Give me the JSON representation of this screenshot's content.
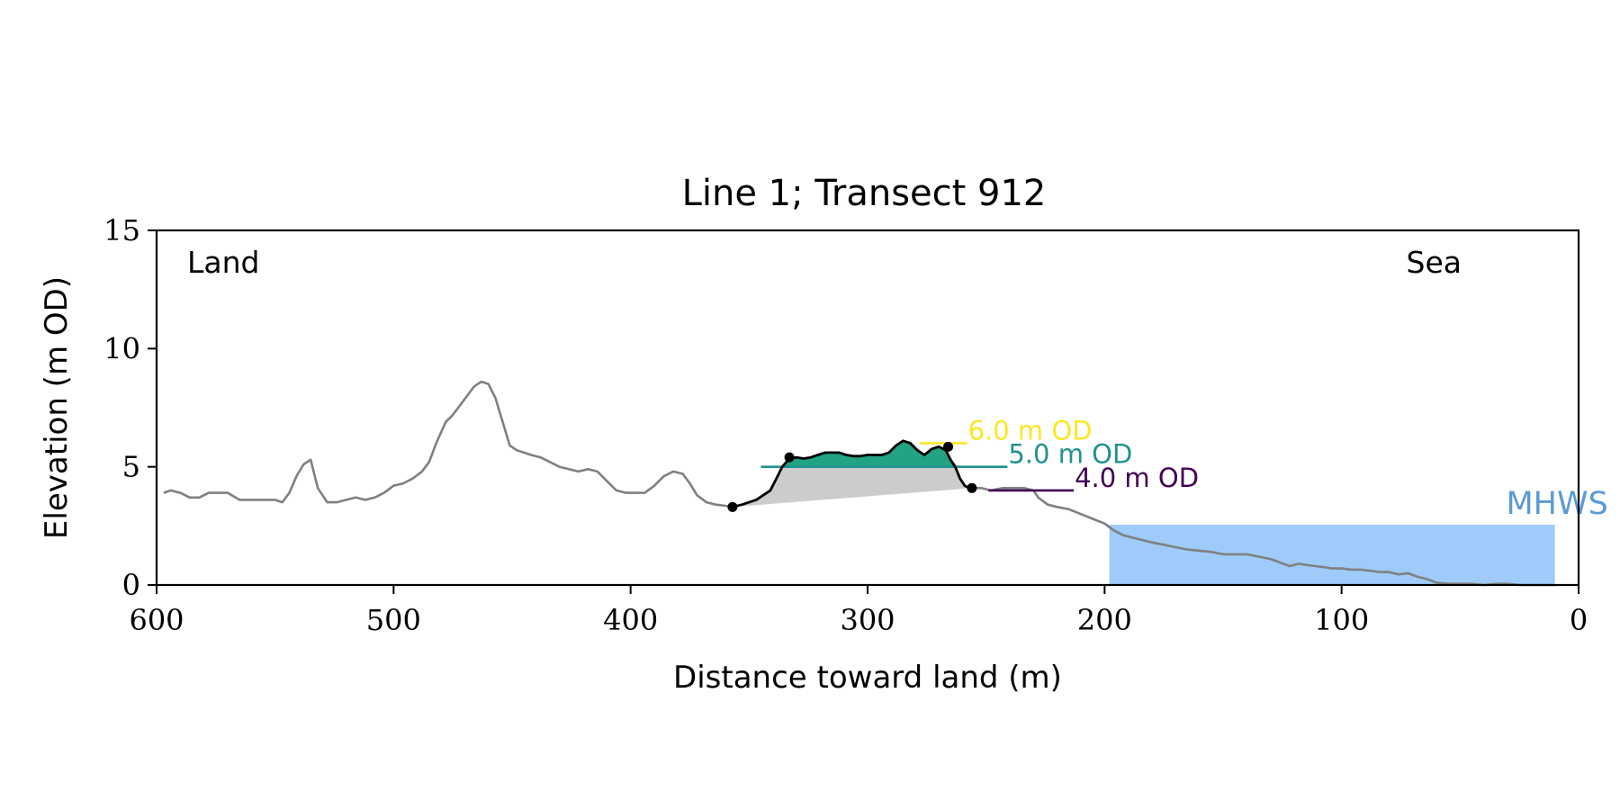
{
  "chart_data": {
    "type": "line",
    "title": "Line 1; Transect 912",
    "xlabel": "Distance toward land (m)",
    "ylabel": "Elevation (m OD)",
    "xlim": [
      600,
      0
    ],
    "ylim": [
      0,
      15
    ],
    "x_ticks": [
      600,
      500,
      400,
      300,
      200,
      100,
      0
    ],
    "y_ticks": [
      0,
      5,
      10,
      15
    ],
    "grid": false,
    "annotations": {
      "land": "Land",
      "sea": "Sea",
      "mhws": "MHWS"
    },
    "mhws": {
      "level": 2.55,
      "x_start": 198,
      "x_end": 10,
      "color": "#9ecbfa"
    },
    "colors": {
      "profile": "#808080",
      "dune": "#000000",
      "dune_fill": "#22a384",
      "base_fill": "#cccccc"
    },
    "profile": {
      "x": [
        597,
        594,
        590,
        586,
        582,
        578,
        575,
        570,
        565,
        560,
        555,
        550,
        547,
        544,
        541,
        538,
        535,
        532,
        528,
        524,
        520,
        516,
        512,
        508,
        504,
        500,
        496,
        492,
        488,
        485,
        482,
        478,
        475,
        472,
        469,
        466,
        463,
        460,
        457,
        454,
        451,
        448,
        445,
        442,
        438,
        434,
        430,
        426,
        422,
        418,
        414,
        410,
        406,
        402,
        398,
        394,
        390,
        386,
        382,
        378,
        375,
        372,
        368,
        364,
        360,
        357,
        355
      ],
      "y": [
        3.9,
        4.0,
        3.9,
        3.7,
        3.7,
        3.9,
        3.9,
        3.9,
        3.6,
        3.6,
        3.6,
        3.6,
        3.5,
        3.9,
        4.6,
        5.1,
        5.3,
        4.1,
        3.5,
        3.5,
        3.6,
        3.7,
        3.6,
        3.7,
        3.9,
        4.2,
        4.3,
        4.5,
        4.8,
        5.2,
        6.0,
        6.9,
        7.2,
        7.6,
        8.0,
        8.4,
        8.6,
        8.5,
        7.9,
        6.9,
        5.9,
        5.7,
        5.6,
        5.5,
        5.4,
        5.2,
        5.0,
        4.9,
        4.8,
        4.9,
        4.8,
        4.4,
        4.0,
        3.9,
        3.9,
        3.9,
        4.2,
        4.6,
        4.8,
        4.7,
        4.3,
        3.8,
        3.5,
        3.4,
        3.35,
        3.3,
        3.3
      ]
    },
    "profile_seaward": {
      "x": [
        257,
        252,
        248,
        243,
        238,
        234,
        230,
        228,
        224,
        220,
        215,
        210,
        205,
        200,
        196,
        192,
        188,
        184,
        180,
        175,
        170,
        165,
        160,
        155,
        150,
        145,
        140,
        135,
        130,
        126,
        122,
        118,
        115,
        111,
        107,
        104,
        100,
        96,
        92,
        88,
        84,
        80,
        76,
        72,
        68,
        64,
        60,
        55,
        50,
        45,
        40,
        35,
        30,
        25,
        20,
        15,
        10
      ],
      "y": [
        4.1,
        4.1,
        4.0,
        4.1,
        4.1,
        4.1,
        4.0,
        3.7,
        3.4,
        3.3,
        3.2,
        3.0,
        2.8,
        2.6,
        2.3,
        2.1,
        2.0,
        1.9,
        1.8,
        1.7,
        1.6,
        1.5,
        1.45,
        1.4,
        1.3,
        1.3,
        1.3,
        1.2,
        1.1,
        0.95,
        0.8,
        0.9,
        0.85,
        0.8,
        0.75,
        0.7,
        0.7,
        0.65,
        0.65,
        0.6,
        0.55,
        0.55,
        0.45,
        0.5,
        0.35,
        0.25,
        0.1,
        0.05,
        0.05,
        0.05,
        0.0,
        0.05,
        0.05,
        0.0,
        0.0,
        0.0,
        0.0
      ]
    },
    "dune_profile": {
      "x": [
        357,
        353,
        350,
        347,
        344,
        341,
        338,
        336,
        333,
        330,
        327,
        324,
        321,
        318,
        315,
        312,
        309,
        306,
        303,
        300,
        297,
        294,
        291,
        288,
        285,
        282,
        279,
        276,
        273,
        270,
        267,
        265,
        263,
        261,
        259,
        257
      ],
      "y": [
        3.3,
        3.4,
        3.5,
        3.6,
        3.8,
        4.0,
        4.6,
        5.0,
        5.35,
        5.4,
        5.35,
        5.4,
        5.5,
        5.6,
        5.6,
        5.6,
        5.5,
        5.45,
        5.45,
        5.5,
        5.5,
        5.5,
        5.6,
        5.9,
        6.1,
        6.0,
        5.7,
        5.5,
        5.75,
        5.85,
        5.7,
        5.3,
        5.0,
        4.5,
        4.2,
        4.1
      ]
    },
    "dune_points": [
      {
        "x": 357,
        "y": 3.3
      },
      {
        "x": 333,
        "y": 5.4
      },
      {
        "x": 266,
        "y": 5.85
      },
      {
        "x": 256,
        "y": 4.1
      }
    ],
    "levels": [
      {
        "label": "6.0 m OD",
        "value": 6.0,
        "x_start": 278,
        "x_end": 258,
        "color": "#fde725"
      },
      {
        "label": "5.0 m OD",
        "value": 5.0,
        "x_start": 345,
        "x_end": 241,
        "color": "#21918c"
      },
      {
        "label": "4.0 m OD",
        "value": 4.0,
        "x_start": 249,
        "x_end": 213,
        "color": "#440154"
      }
    ]
  }
}
